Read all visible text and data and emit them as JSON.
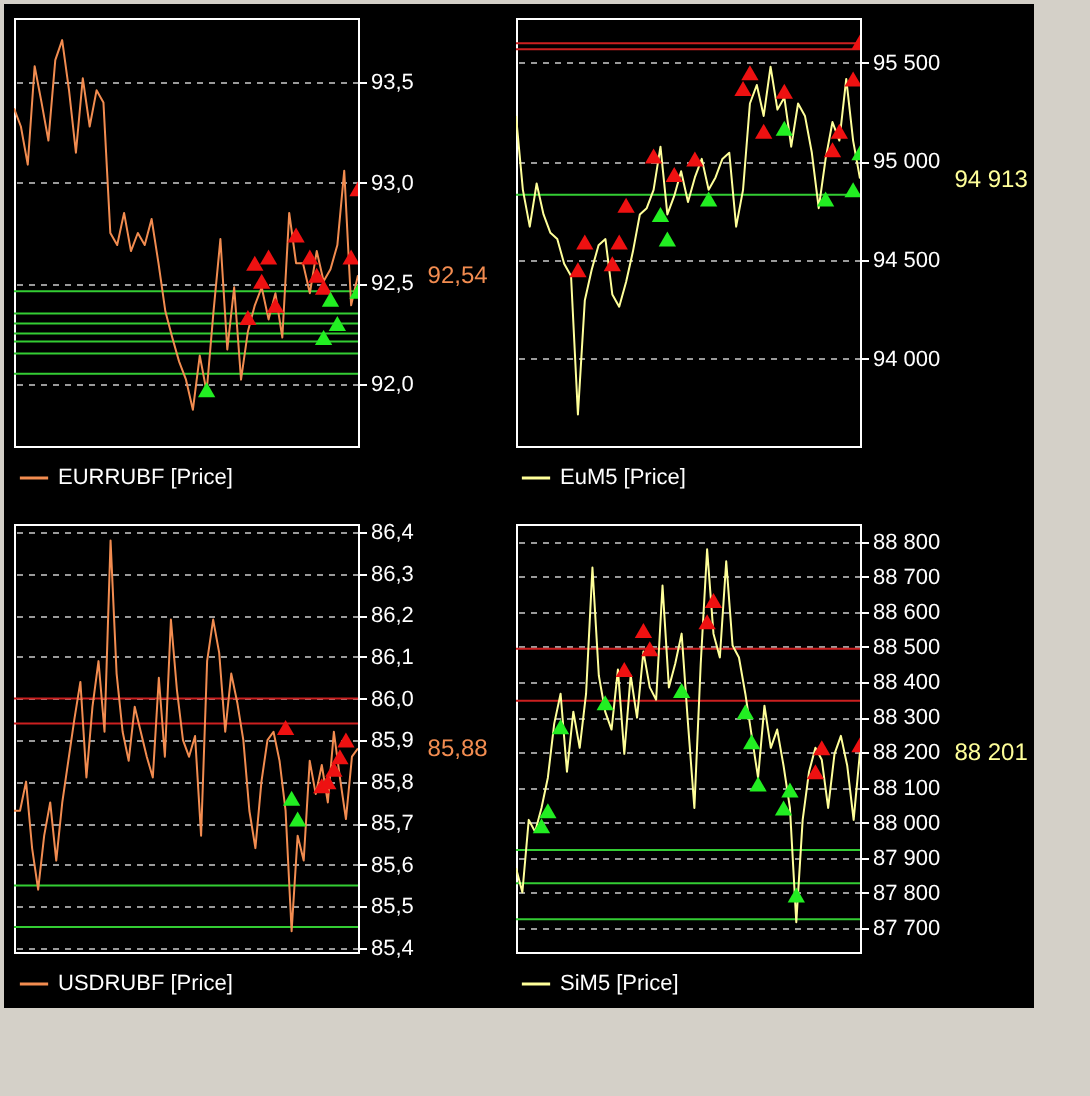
{
  "chart_data": [
    {
      "type": "line",
      "legend": "bottom",
      "grid": "y",
      "ylim": [
        91.69,
        93.82
      ],
      "yticks": [
        {
          "value": 92,
          "label": "92,0"
        },
        {
          "value": 92.5,
          "label": "92,5"
        },
        {
          "value": 93,
          "label": "93,0"
        },
        {
          "value": 93.5,
          "label": "93,5"
        }
      ],
      "categories": [
        null,
        null,
        null,
        null,
        null,
        null,
        null,
        null,
        null,
        null,
        null,
        null,
        null,
        null,
        null,
        null,
        null,
        null,
        null,
        null,
        null,
        null,
        null,
        null,
        null,
        null,
        null,
        null,
        null,
        null,
        null,
        null,
        null,
        null,
        null,
        null,
        null,
        null,
        null,
        null,
        null,
        null,
        null,
        null,
        null,
        null,
        null,
        null,
        null,
        null,
        null
      ],
      "series": [
        {
          "name": "EURRUBF [Price]",
          "color": "#f28c50",
          "values": [
            93.37,
            93.28,
            93.09,
            93.58,
            93.4,
            93.21,
            93.61,
            93.71,
            93.46,
            93.15,
            93.52,
            93.28,
            93.46,
            93.4,
            92.75,
            92.69,
            92.85,
            92.66,
            92.75,
            92.69,
            92.82,
            92.6,
            92.36,
            92.23,
            92.11,
            92.02,
            91.87,
            92.14,
            91.96,
            92.36,
            92.72,
            92.17,
            92.48,
            92.02,
            92.26,
            92.39,
            92.48,
            92.32,
            92.45,
            92.23,
            92.85,
            92.6,
            92.6,
            92.45,
            92.66,
            92.51,
            92.57,
            92.69,
            93.06,
            92.39,
            92.54
          ]
        },
        {
          "type": "scatter",
          "marker": "triangle",
          "color": "#ee1111",
          "values": [
            null,
            null,
            null,
            null,
            null,
            null,
            null,
            null,
            null,
            null,
            null,
            null,
            null,
            null,
            null,
            null,
            null,
            null,
            null,
            null,
            null,
            null,
            null,
            null,
            null,
            null,
            null,
            null,
            null,
            null,
            null,
            null,
            null,
            null,
            92.33,
            92.6,
            92.51,
            92.63,
            92.39,
            null,
            null,
            92.74,
            null,
            92.63,
            92.54,
            92.48,
            null,
            null,
            null,
            92.63,
            92.97
          ]
        },
        {
          "type": "scatter",
          "marker": "triangle",
          "color": "#22ee22",
          "values": [
            null,
            null,
            null,
            null,
            null,
            null,
            null,
            null,
            null,
            null,
            null,
            null,
            null,
            null,
            null,
            null,
            null,
            null,
            null,
            null,
            null,
            null,
            null,
            null,
            null,
            null,
            null,
            null,
            91.97,
            null,
            null,
            null,
            null,
            null,
            null,
            null,
            null,
            null,
            null,
            null,
            null,
            null,
            null,
            null,
            null,
            92.23,
            92.42,
            92.3,
            null,
            null,
            92.46
          ]
        }
      ],
      "ref_lines": [
        {
          "axis": "y",
          "value": 92.46,
          "color": "#33cc33"
        },
        {
          "axis": "y",
          "value": 92.35,
          "color": "#33cc33"
        },
        {
          "axis": "y",
          "value": 92.3,
          "color": "#33cc33"
        },
        {
          "axis": "y",
          "value": 92.25,
          "color": "#33cc33"
        },
        {
          "axis": "y",
          "value": 92.21,
          "color": "#33cc33"
        },
        {
          "axis": "y",
          "value": 92.15,
          "color": "#33cc33"
        },
        {
          "axis": "y",
          "value": 92.05,
          "color": "#33cc33"
        }
      ],
      "annotations": [
        "92,54"
      ]
    },
    {
      "type": "line",
      "legend": "bottom",
      "grid": "y",
      "ylim": [
        93556,
        95728
      ],
      "yticks": [
        {
          "value": 94000,
          "label": "94 000"
        },
        {
          "value": 94500,
          "label": "94 500"
        },
        {
          "value": 95000,
          "label": "95 000"
        },
        {
          "value": 95500,
          "label": "95 500"
        }
      ],
      "categories": [
        null,
        null,
        null,
        null,
        null,
        null,
        null,
        null,
        null,
        null,
        null,
        null,
        null,
        null,
        null,
        null,
        null,
        null,
        null,
        null,
        null,
        null,
        null,
        null,
        null,
        null,
        null,
        null,
        null,
        null,
        null,
        null,
        null,
        null,
        null,
        null,
        null,
        null,
        null,
        null,
        null,
        null,
        null,
        null,
        null,
        null,
        null,
        null,
        null,
        null,
        null
      ],
      "series": [
        {
          "name": "EuM5 [Price]",
          "color": "#ffff99",
          "values": [
            95231,
            94856,
            94669,
            94888,
            94731,
            94638,
            94606,
            94481,
            94419,
            93716,
            94294,
            94450,
            94575,
            94606,
            94325,
            94263,
            94388,
            94544,
            94731,
            94763,
            94856,
            95075,
            94731,
            94825,
            94950,
            94794,
            94919,
            95013,
            94856,
            94919,
            95013,
            95044,
            94669,
            94856,
            95294,
            95388,
            95231,
            95481,
            95263,
            95325,
            95075,
            95294,
            95231,
            95044,
            94763,
            95013,
            95200,
            95106,
            95419,
            95106,
            94913
          ]
        },
        {
          "type": "scatter",
          "marker": "triangle",
          "color": "#ee1111",
          "values": [
            null,
            null,
            null,
            null,
            null,
            null,
            null,
            null,
            null,
            94450,
            94591,
            null,
            null,
            null,
            94481,
            94591,
            94778,
            null,
            null,
            null,
            95028,
            null,
            null,
            94934,
            null,
            null,
            95013,
            null,
            null,
            null,
            null,
            null,
            null,
            95370,
            95450,
            null,
            95153,
            null,
            null,
            95356,
            null,
            null,
            null,
            null,
            null,
            null,
            95060,
            95153,
            null,
            95419,
            95606
          ]
        },
        {
          "type": "scatter",
          "marker": "triangle",
          "color": "#22ee22",
          "values": [
            null,
            null,
            null,
            null,
            null,
            null,
            null,
            null,
            null,
            null,
            null,
            null,
            null,
            null,
            null,
            null,
            null,
            null,
            null,
            null,
            null,
            94731,
            94606,
            null,
            null,
            null,
            null,
            null,
            94809,
            null,
            null,
            null,
            null,
            null,
            null,
            null,
            null,
            null,
            null,
            95169,
            null,
            null,
            null,
            null,
            null,
            94809,
            null,
            null,
            null,
            94856,
            95044
          ]
        }
      ],
      "ref_lines": [
        {
          "axis": "y",
          "value": 95600,
          "color": "#cc2020"
        },
        {
          "axis": "y",
          "value": 95569,
          "color": "#cc2020"
        },
        {
          "axis": "y",
          "value": 94831,
          "color": "#33cc33"
        }
      ],
      "annotations": [
        "94 913"
      ]
    },
    {
      "type": "line",
      "legend": "bottom",
      "grid": "y",
      "ylim": [
        85.39,
        86.42
      ],
      "yticks": [
        {
          "value": 85.4,
          "label": "85,4"
        },
        {
          "value": 85.5,
          "label": "85,5"
        },
        {
          "value": 85.6,
          "label": "85,6"
        },
        {
          "value": 85.7,
          "label": "85,7"
        },
        {
          "value": 85.8,
          "label": "85,8"
        },
        {
          "value": 85.9,
          "label": "85,9"
        },
        {
          "value": 86,
          "label": "86,0"
        },
        {
          "value": 86.1,
          "label": "86,1"
        },
        {
          "value": 86.2,
          "label": "86,2"
        },
        {
          "value": 86.3,
          "label": "86,3"
        },
        {
          "value": 86.4,
          "label": "86,4"
        }
      ],
      "categories": [
        null,
        null,
        null,
        null,
        null,
        null,
        null,
        null,
        null,
        null,
        null,
        null,
        null,
        null,
        null,
        null,
        null,
        null,
        null,
        null,
        null,
        null,
        null,
        null,
        null,
        null,
        null,
        null,
        null,
        null,
        null,
        null,
        null,
        null,
        null,
        null,
        null,
        null,
        null,
        null,
        null,
        null,
        null,
        null,
        null,
        null,
        null,
        null,
        null,
        null,
        null,
        null,
        null,
        null,
        null,
        null,
        null,
        null
      ],
      "series": [
        {
          "name": "USDRUBF [Price]",
          "color": "#f28c50",
          "values": [
            85.73,
            85.73,
            85.8,
            85.64,
            85.54,
            85.67,
            85.75,
            85.61,
            85.75,
            85.85,
            85.95,
            86.04,
            85.81,
            85.98,
            86.09,
            85.92,
            86.38,
            86.06,
            85.92,
            85.85,
            85.98,
            85.92,
            85.86,
            85.81,
            86.05,
            85.86,
            86.19,
            86.02,
            85.9,
            85.86,
            85.91,
            85.67,
            86.09,
            86.19,
            86.11,
            85.92,
            86.06,
            85.99,
            85.9,
            85.73,
            85.64,
            85.8,
            85.9,
            85.92,
            85.85,
            85.73,
            85.44,
            85.67,
            85.61,
            85.85,
            85.77,
            85.84,
            85.75,
            85.92,
            85.81,
            85.71,
            85.86,
            85.88
          ]
        },
        {
          "type": "scatter",
          "marker": "triangle",
          "color": "#ee1111",
          "values": [
            null,
            null,
            null,
            null,
            null,
            null,
            null,
            null,
            null,
            null,
            null,
            null,
            null,
            null,
            null,
            null,
            null,
            null,
            null,
            null,
            null,
            null,
            null,
            null,
            null,
            null,
            null,
            null,
            null,
            null,
            null,
            null,
            null,
            null,
            null,
            null,
            null,
            null,
            null,
            null,
            null,
            null,
            null,
            null,
            null,
            85.93,
            null,
            null,
            null,
            null,
            null,
            85.79,
            85.8,
            85.83,
            85.86,
            85.9,
            null,
            null
          ]
        },
        {
          "type": "scatter",
          "marker": "triangle",
          "color": "#22ee22",
          "values": [
            null,
            null,
            null,
            null,
            null,
            null,
            null,
            null,
            null,
            null,
            null,
            null,
            null,
            null,
            null,
            null,
            null,
            null,
            null,
            null,
            null,
            null,
            null,
            null,
            null,
            null,
            null,
            null,
            null,
            null,
            null,
            null,
            null,
            null,
            null,
            null,
            null,
            null,
            null,
            null,
            null,
            null,
            null,
            null,
            null,
            null,
            85.76,
            85.71,
            null,
            null,
            null,
            null,
            null,
            null,
            null,
            null,
            null,
            null
          ]
        }
      ],
      "ref_lines": [
        {
          "axis": "y",
          "value": 86.0,
          "color": "#cc2020"
        },
        {
          "axis": "y",
          "value": 85.94,
          "color": "#cc2020"
        },
        {
          "axis": "y",
          "value": 85.55,
          "color": "#33cc33"
        },
        {
          "axis": "y",
          "value": 85.45,
          "color": "#33cc33"
        }
      ],
      "annotations": [
        "85,88"
      ]
    },
    {
      "type": "line",
      "legend": "bottom",
      "grid": "y",
      "ylim": [
        87632,
        88850
      ],
      "yticks": [
        {
          "value": 87700,
          "label": "87 700"
        },
        {
          "value": 87800,
          "label": "87 800"
        },
        {
          "value": 87900,
          "label": "87 900"
        },
        {
          "value": 88000,
          "label": "88 000"
        },
        {
          "value": 88100,
          "label": "88 100"
        },
        {
          "value": 88200,
          "label": "88 200"
        },
        {
          "value": 88300,
          "label": "88 300"
        },
        {
          "value": 88400,
          "label": "88 400"
        },
        {
          "value": 88500,
          "label": "88 500"
        },
        {
          "value": 88600,
          "label": "88 600"
        },
        {
          "value": 88700,
          "label": "88 700"
        },
        {
          "value": 88800,
          "label": "88 800"
        }
      ],
      "categories": [
        null,
        null,
        null,
        null,
        null,
        null,
        null,
        null,
        null,
        null,
        null,
        null,
        null,
        null,
        null,
        null,
        null,
        null,
        null,
        null,
        null,
        null,
        null,
        null,
        null,
        null,
        null,
        null,
        null,
        null,
        null,
        null,
        null,
        null,
        null,
        null,
        null,
        null,
        null,
        null,
        null,
        null,
        null,
        null,
        null,
        null,
        null,
        null,
        null,
        null,
        null,
        null,
        null,
        null,
        null
      ],
      "series": [
        {
          "name": "SiM5 [Price]",
          "color": "#ffff99",
          "values": [
            87871,
            87802,
            88008,
            87974,
            88042,
            88128,
            88282,
            88367,
            88145,
            88316,
            88213,
            88367,
            88726,
            88419,
            88316,
            88265,
            88436,
            88196,
            88419,
            88299,
            88487,
            88385,
            88350,
            88675,
            88385,
            88453,
            88538,
            88282,
            88042,
            88453,
            88778,
            88538,
            88470,
            88744,
            88504,
            88470,
            88367,
            88247,
            88128,
            88333,
            88213,
            88265,
            88162,
            88042,
            87717,
            88008,
            88145,
            88213,
            88179,
            88042,
            88196,
            88247,
            88162,
            88008,
            88201
          ]
        },
        {
          "type": "scatter",
          "marker": "triangle",
          "color": "#ee1111",
          "values": [
            null,
            null,
            null,
            null,
            null,
            null,
            null,
            null,
            null,
            null,
            null,
            null,
            null,
            null,
            null,
            null,
            null,
            88436,
            null,
            null,
            88547,
            88495,
            null,
            null,
            null,
            null,
            null,
            null,
            null,
            null,
            88572,
            88632,
            null,
            null,
            null,
            null,
            null,
            null,
            null,
            null,
            null,
            null,
            null,
            null,
            null,
            null,
            null,
            88145,
            88213,
            null,
            null,
            null,
            null,
            null,
            88222
          ]
        },
        {
          "type": "scatter",
          "marker": "triangle",
          "color": "#22ee22",
          "values": [
            null,
            null,
            null,
            null,
            87991,
            88034,
            null,
            88273,
            null,
            null,
            null,
            null,
            null,
            null,
            88341,
            null,
            null,
            null,
            null,
            null,
            null,
            null,
            null,
            null,
            null,
            null,
            88376,
            null,
            null,
            null,
            null,
            null,
            null,
            null,
            null,
            null,
            88316,
            88230,
            88110,
            null,
            null,
            null,
            88042,
            88093,
            87794,
            null,
            null,
            null,
            null,
            null,
            null,
            null,
            null,
            null,
            null
          ]
        }
      ],
      "ref_lines": [
        {
          "axis": "y",
          "value": 88495,
          "color": "#cc2020"
        },
        {
          "axis": "y",
          "value": 88347,
          "color": "#cc2020"
        },
        {
          "axis": "y",
          "value": 87922,
          "color": "#33cc33"
        },
        {
          "axis": "y",
          "value": 87828,
          "color": "#33cc33"
        },
        {
          "axis": "y",
          "value": 87725,
          "color": "#33cc33"
        }
      ],
      "annotations": [
        "88 201"
      ]
    }
  ]
}
